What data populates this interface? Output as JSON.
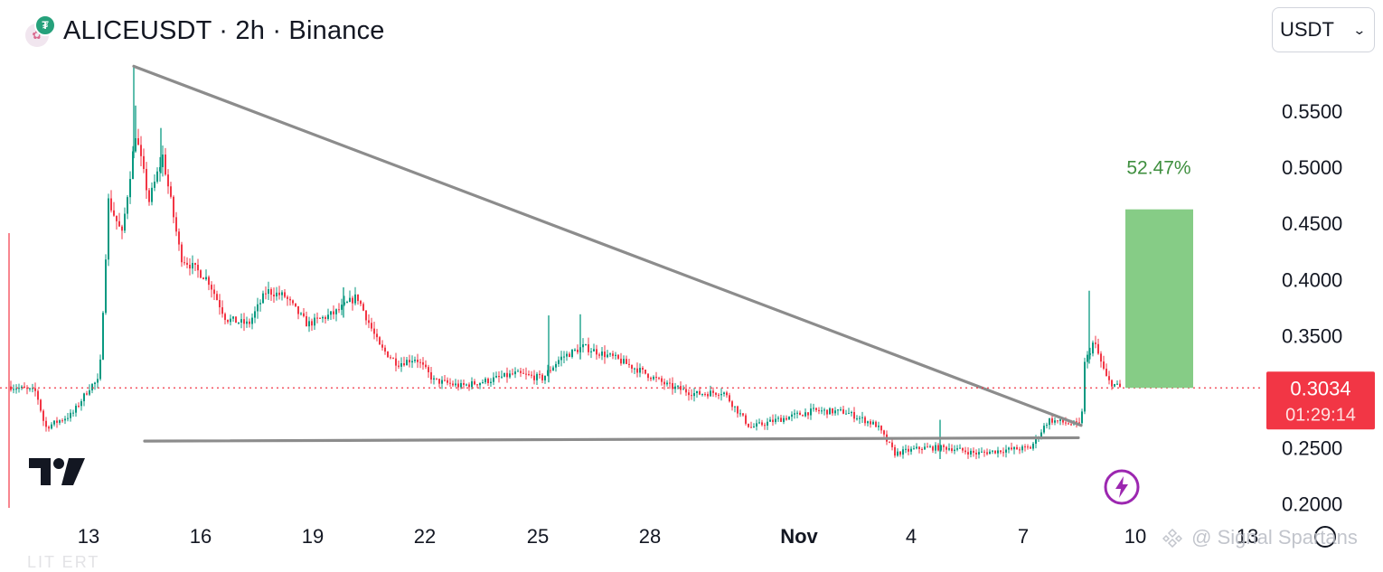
{
  "header": {
    "title": "ALICEUSDT · 2h · Binance",
    "base_icon": "alice-coin-icon",
    "quote_icon": "tether-coin-icon",
    "quote_icon_glyph": "₮"
  },
  "currency_selector": {
    "value": "USDT",
    "icon": "chevron-down-icon"
  },
  "chart_data": {
    "type": "candlestick",
    "symbol": "ALICEUSDT",
    "interval": "2h",
    "exchange": "Binance",
    "y_axis": {
      "ticks": [
        "0.5500",
        "0.5000",
        "0.4500",
        "0.4000",
        "0.3500",
        "0.2500",
        "0.2000"
      ],
      "range": [
        0.195,
        0.59
      ]
    },
    "x_axis": {
      "ticks": [
        "13",
        "16",
        "19",
        "22",
        "25",
        "28",
        "Nov",
        "4",
        "7",
        "10",
        "13"
      ],
      "bold_ticks": [
        "Nov"
      ]
    },
    "price_path": [
      [
        10,
        0.305
      ],
      [
        40,
        0.3
      ],
      [
        50,
        0.268
      ],
      [
        80,
        0.28
      ],
      [
        100,
        0.305
      ],
      [
        110,
        0.31
      ],
      [
        120,
        0.47
      ],
      [
        135,
        0.44
      ],
      [
        150,
        0.53
      ],
      [
        165,
        0.47
      ],
      [
        180,
        0.51
      ],
      [
        200,
        0.42
      ],
      [
        230,
        0.4
      ],
      [
        250,
        0.365
      ],
      [
        275,
        0.36
      ],
      [
        295,
        0.39
      ],
      [
        315,
        0.385
      ],
      [
        340,
        0.36
      ],
      [
        370,
        0.37
      ],
      [
        395,
        0.385
      ],
      [
        420,
        0.34
      ],
      [
        440,
        0.325
      ],
      [
        460,
        0.33
      ],
      [
        480,
        0.31
      ],
      [
        510,
        0.305
      ],
      [
        540,
        0.31
      ],
      [
        570,
        0.316
      ],
      [
        600,
        0.312
      ],
      [
        620,
        0.33
      ],
      [
        645,
        0.34
      ],
      [
        680,
        0.33
      ],
      [
        710,
        0.318
      ],
      [
        740,
        0.305
      ],
      [
        770,
        0.298
      ],
      [
        800,
        0.3
      ],
      [
        830,
        0.268
      ],
      [
        860,
        0.275
      ],
      [
        900,
        0.283
      ],
      [
        935,
        0.282
      ],
      [
        970,
        0.27
      ],
      [
        990,
        0.245
      ],
      [
        1020,
        0.25
      ],
      [
        1050,
        0.25
      ],
      [
        1080,
        0.245
      ],
      [
        1110,
        0.248
      ],
      [
        1140,
        0.25
      ],
      [
        1160,
        0.275
      ],
      [
        1180,
        0.272
      ],
      [
        1196,
        0.27
      ],
      [
        1200,
        0.325
      ],
      [
        1210,
        0.345
      ],
      [
        1225,
        0.31
      ],
      [
        1240,
        0.303
      ]
    ],
    "spikes": [
      [
        148,
        0.59
      ],
      [
        150,
        0.555
      ],
      [
        178,
        0.535
      ],
      [
        1205,
        0.39
      ],
      [
        1040,
        0.275
      ],
      [
        607,
        0.368
      ],
      [
        642,
        0.369
      ],
      [
        380,
        0.393
      ]
    ],
    "current_price": {
      "value": "0.3034",
      "countdown": "01:29:14"
    },
    "trendlines": [
      {
        "name": "descending-resistance",
        "points": [
          [
            148,
            0.59
          ],
          [
            1196,
            0.27
          ]
        ]
      },
      {
        "name": "horizontal-support",
        "points": [
          [
            160,
            0.256
          ],
          [
            1193,
            0.259
          ]
        ]
      }
    ],
    "projection": {
      "label": "52.47%",
      "from": 0.3034,
      "to": 0.4625
    },
    "colors": {
      "up": "#089981",
      "down": "#f23645",
      "line": "#8c8c8c",
      "projection": "#86cc86",
      "projection_text": "#3f8f3f",
      "price_tag": "#f23645"
    }
  },
  "icons": {
    "tradingview_logo": "tradingview-logo-icon",
    "lightning": "lightning-icon"
  },
  "watermark": {
    "text": "@ Signal Spartans",
    "logo": "binance-square-icon"
  },
  "bottom_strip_text": "LIT ERT"
}
